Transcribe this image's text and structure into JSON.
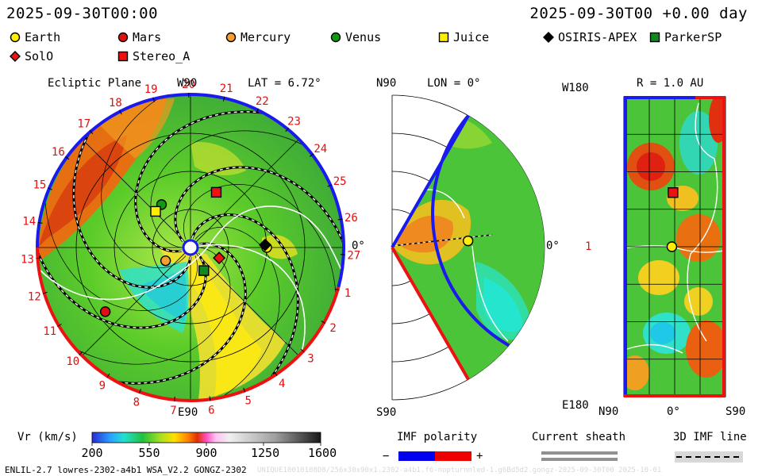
{
  "header": {
    "left_datetime": "2025-09-30T00:00",
    "right_datetime": "2025-09-30T00 +0.00 day"
  },
  "legend": [
    {
      "label": "Earth",
      "shape": "circle",
      "color": "#ffee00"
    },
    {
      "label": "Mars",
      "shape": "circle",
      "color": "#dd1111"
    },
    {
      "label": "Mercury",
      "shape": "circle",
      "color": "#f5a030"
    },
    {
      "label": "Venus",
      "shape": "circle",
      "color": "#119911"
    },
    {
      "label": "Juice",
      "shape": "square",
      "color": "#ffee00"
    },
    {
      "label": "OSIRIS-APEX",
      "shape": "diamond",
      "color": "#000000"
    },
    {
      "label": "ParkerSP",
      "shape": "square",
      "color": "#118822"
    },
    {
      "label": "SolO",
      "shape": "diamond",
      "color": "#ee1111"
    },
    {
      "label": "Stereo_A",
      "shape": "square",
      "color": "#ee1111"
    }
  ],
  "chart_data": [
    {
      "type": "heatmap",
      "title": "Ecliptic Plane",
      "subtitle": "LAT = 6.72°",
      "top_label": "W90",
      "bottom_label": "E90",
      "right_label": "0°",
      "rotation_labels": [
        "19",
        "20",
        "21",
        "22",
        "23",
        "24",
        "25",
        "26",
        "27",
        "1",
        "2",
        "3",
        "4",
        "5",
        "6",
        "7",
        "8",
        "9",
        "10",
        "11",
        "12",
        "13",
        "14",
        "15",
        "16",
        "17",
        "18"
      ],
      "objects": [
        {
          "name": "Earth",
          "angle_deg": 0,
          "r_au": 1.0
        },
        {
          "name": "Mercury",
          "angle_deg": 208,
          "r_au": 0.37
        },
        {
          "name": "Mars",
          "angle_deg": 217,
          "r_au": 1.4
        },
        {
          "name": "Venus",
          "angle_deg": 124,
          "r_au": 0.68
        },
        {
          "name": "Juice",
          "angle_deg": 134,
          "r_au": 0.66
        },
        {
          "name": "SolO",
          "angle_deg": 340,
          "r_au": 0.4
        },
        {
          "name": "ParkerSP",
          "angle_deg": 300,
          "r_au": 0.35
        },
        {
          "name": "Stereo_A",
          "angle_deg": 65,
          "r_au": 0.8
        },
        {
          "name": "OSIRIS-APEX",
          "angle_deg": 2,
          "r_au": 0.98
        }
      ]
    },
    {
      "type": "heatmap",
      "title": "LON = 0°",
      "top_label": "N90",
      "bottom_label": "S90",
      "right_label": "0°",
      "objects": [
        {
          "name": "Earth",
          "angle_deg": 5,
          "r_au": 1.0
        }
      ]
    },
    {
      "type": "heatmap",
      "title": "R = 1.0 AU",
      "top_left_label": "W180",
      "mid_left_label": "1",
      "bottom_left_label": "E180",
      "x_tick_labels": [
        "N90",
        "0°",
        "S90"
      ],
      "objects": [
        {
          "name": "Earth",
          "lat_deg": 5,
          "lon_deg": 0
        },
        {
          "name": "Stereo_A",
          "lat_deg": 3,
          "lon_deg": 65
        }
      ]
    }
  ],
  "colorbar": {
    "label": "Vr (km/s)",
    "ticks": [
      "200",
      "550",
      "900",
      "1250",
      "1600"
    ]
  },
  "imf_polarity": {
    "label": "IMF polarity",
    "minus": "−",
    "plus": "+",
    "neg_color": "#0000ee",
    "pos_color": "#ee0000"
  },
  "current_sheath": {
    "label": "Current sheath"
  },
  "imf_line": {
    "label": "3D IMF line"
  },
  "footer": {
    "left": "ENLIL-2.7 lowres-2302-a4b1 WSA_V2.2 GONGZ-2302",
    "right": "UNIQUE10010108D8/256x30x90x1.2302-a4b1.f6-nopturnnled-1.g6Bd5d2.gongz-2025-09-30T00 2025-10-01"
  }
}
